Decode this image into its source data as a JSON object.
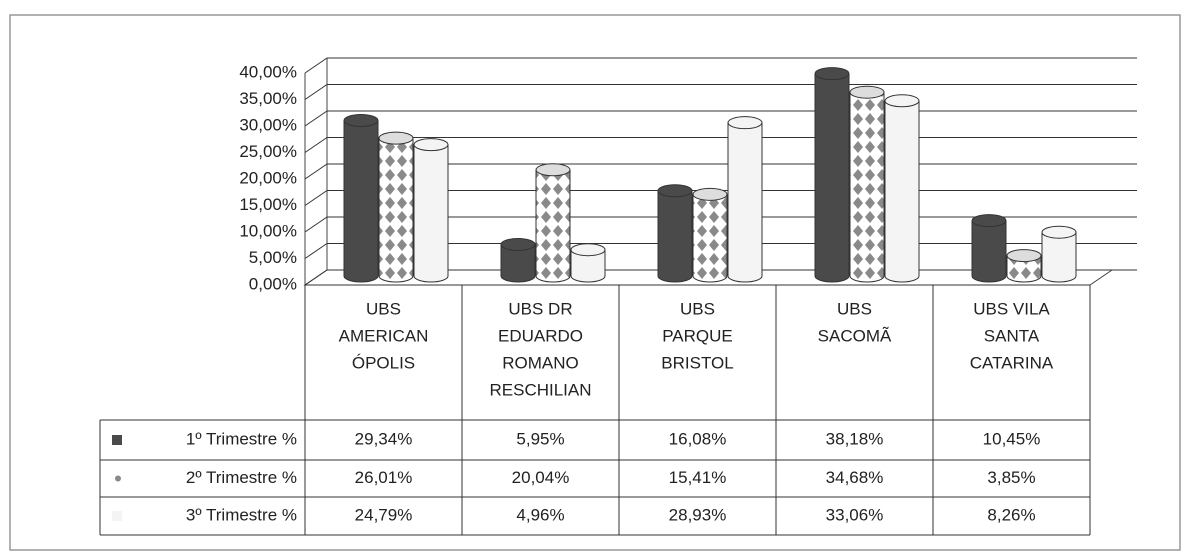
{
  "chart_data": {
    "type": "bar3d",
    "categories": [
      [
        "UBS",
        "AMERICAN",
        "ÓPOLIS"
      ],
      [
        "UBS DR",
        "EDUARDO",
        "ROMANO",
        "RESCHILIAN"
      ],
      [
        "UBS",
        "PARQUE",
        "BRISTOL"
      ],
      [
        "UBS",
        "SACOMÃ"
      ],
      [
        "UBS VILA",
        "SANTA",
        "CATARINA"
      ]
    ],
    "series": [
      {
        "name": "1º Trimestre %",
        "color": "#4a4a4a",
        "values": [
          29.34,
          5.95,
          16.08,
          38.18,
          10.45
        ],
        "value_labels": [
          "29,34%",
          "5,95%",
          "16,08%",
          "38,18%",
          "10,45%"
        ]
      },
      {
        "name": "2º Trimestre %",
        "color": "#8a8a8a",
        "pattern": "diamond",
        "values": [
          26.01,
          20.04,
          15.41,
          34.68,
          3.85
        ],
        "value_labels": [
          "26,01%",
          "20,04%",
          "15,41%",
          "34,68%",
          "3,85%"
        ]
      },
      {
        "name": "3º Trimestre %",
        "color": "#f4f4f4",
        "values": [
          24.79,
          4.96,
          28.93,
          33.06,
          8.26
        ],
        "value_labels": [
          "24,79%",
          "4,96%",
          "28,93%",
          "33,06%",
          "8,26%"
        ]
      }
    ],
    "ylim": [
      0,
      40
    ],
    "yticks": [
      {
        "value": 0,
        "label": "0,00%"
      },
      {
        "value": 5,
        "label": "5,00%"
      },
      {
        "value": 10,
        "label": "10,00%"
      },
      {
        "value": 15,
        "label": "15,00%"
      },
      {
        "value": 20,
        "label": "20,00%"
      },
      {
        "value": 25,
        "label": "25,00%"
      },
      {
        "value": 30,
        "label": "30,00%"
      },
      {
        "value": 35,
        "label": "35,00%"
      },
      {
        "value": 40,
        "label": "40,00%"
      }
    ],
    "grid": true
  }
}
